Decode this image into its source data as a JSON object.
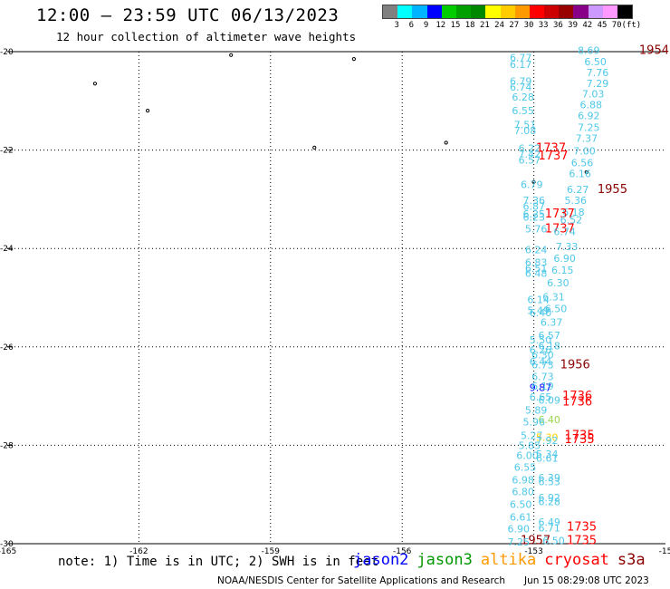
{
  "header": {
    "title": "12:00 – 23:59 UTC 06/13/2023",
    "subtitle": "12 hour collection of altimeter wave heights"
  },
  "legend": {
    "colors": [
      "#808080",
      "#00ffff",
      "#00b4ff",
      "#0000ff",
      "#00cc00",
      "#00a000",
      "#008800",
      "#ffff00",
      "#ffcc00",
      "#ff9900",
      "#ff0000",
      "#cc0000",
      "#990000",
      "#880088",
      "#cc99ff",
      "#ff99ff",
      "#000000"
    ],
    "labels": [
      "3",
      "6",
      "9",
      "12",
      "15",
      "18",
      "21",
      "24",
      "27",
      "30",
      "33",
      "36",
      "39",
      "42",
      "45",
      "70",
      "(ft)"
    ]
  },
  "axes": {
    "lat_labels": [
      "-20",
      "-22",
      "-24",
      "-26",
      "-28",
      "-30"
    ],
    "lon_labels": [
      "-165",
      "-162",
      "-159",
      "-156",
      "-153",
      "-15"
    ]
  },
  "wave_labels": [
    {
      "t": "8.69",
      "c": "#4fc8e8",
      "lon": -152.0,
      "lat": -19.97
    },
    {
      "t": "1954",
      "c": "#8b0000",
      "lon": -150.6,
      "lat": -19.97
    },
    {
      "t": "6.77",
      "c": "#4fc8e8",
      "lon": -153.55,
      "lat": -20.12
    },
    {
      "t": "6.50",
      "c": "#4fc8e8",
      "lon": -151.85,
      "lat": -20.2
    },
    {
      "t": "6.17",
      "c": "#4fc8e8",
      "lon": -153.55,
      "lat": -20.26
    },
    {
      "t": "7.76",
      "c": "#4fc8e8",
      "lon": -151.8,
      "lat": -20.42
    },
    {
      "t": "6.79",
      "c": "#4fc8e8",
      "lon": -153.55,
      "lat": -20.6
    },
    {
      "t": "7.29",
      "c": "#4fc8e8",
      "lon": -151.8,
      "lat": -20.64
    },
    {
      "t": "6.74",
      "c": "#4fc8e8",
      "lon": -153.55,
      "lat": -20.72
    },
    {
      "t": "7.03",
      "c": "#4fc8e8",
      "lon": -151.9,
      "lat": -20.86
    },
    {
      "t": "6.28",
      "c": "#4fc8e8",
      "lon": -153.5,
      "lat": -20.92
    },
    {
      "t": "6.88",
      "c": "#4fc8e8",
      "lon": -151.95,
      "lat": -21.08
    },
    {
      "t": "6.55",
      "c": "#4fc8e8",
      "lon": -153.5,
      "lat": -21.2
    },
    {
      "t": "6.92",
      "c": "#4fc8e8",
      "lon": -152.0,
      "lat": -21.3
    },
    {
      "t": "7.51",
      "c": "#4fc8e8",
      "lon": -153.45,
      "lat": -21.48
    },
    {
      "t": "7.25",
      "c": "#4fc8e8",
      "lon": -152.0,
      "lat": -21.54
    },
    {
      "t": "7.08",
      "c": "#4fc8e8",
      "lon": -153.45,
      "lat": -21.6
    },
    {
      "t": "7.37",
      "c": "#4fc8e8",
      "lon": -152.05,
      "lat": -21.76
    },
    {
      "t": "6.22",
      "c": "#4fc8e8",
      "lon": -153.35,
      "lat": -21.96
    },
    {
      "t": "1737",
      "c": "#ff0000",
      "lon": -152.95,
      "lat": -21.96
    },
    {
      "t": "7.00",
      "c": "#4fc8e8",
      "lon": -152.1,
      "lat": -22.02
    },
    {
      "t": "7.42",
      "c": "#4fc8e8",
      "lon": -153.35,
      "lat": -22.08
    },
    {
      "t": "1737",
      "c": "#ff0000",
      "lon": -152.9,
      "lat": -22.12
    },
    {
      "t": "6.57",
      "c": "#4fc8e8",
      "lon": -153.35,
      "lat": -22.2
    },
    {
      "t": "6.56",
      "c": "#4fc8e8",
      "lon": -152.15,
      "lat": -22.26
    },
    {
      "t": "6.16",
      "c": "#4fc8e8",
      "lon": -152.2,
      "lat": -22.48
    },
    {
      "t": "6.79",
      "c": "#4fc8e8",
      "lon": -153.3,
      "lat": -22.7
    },
    {
      "t": "6.27",
      "c": "#4fc8e8",
      "lon": -152.25,
      "lat": -22.8
    },
    {
      "t": "1955",
      "c": "#8b0000",
      "lon": -151.55,
      "lat": -22.8
    },
    {
      "t": "7.36",
      "c": "#4fc8e8",
      "lon": -153.25,
      "lat": -23.02
    },
    {
      "t": "5.36",
      "c": "#4fc8e8",
      "lon": -152.3,
      "lat": -23.02
    },
    {
      "t": "6.87",
      "c": "#4fc8e8",
      "lon": -153.25,
      "lat": -23.14
    },
    {
      "t": "6.18",
      "c": "#4fc8e8",
      "lon": -152.35,
      "lat": -23.26
    },
    {
      "t": "6.25",
      "c": "#4fc8e8",
      "lon": -153.25,
      "lat": -23.3
    },
    {
      "t": "1737",
      "c": "#ff0000",
      "lon": -152.75,
      "lat": -23.3
    },
    {
      "t": "6.23",
      "c": "#4fc8e8",
      "lon": -153.25,
      "lat": -23.36
    },
    {
      "t": "6.52",
      "c": "#4fc8e8",
      "lon": -152.4,
      "lat": -23.42
    },
    {
      "t": "5.76",
      "c": "#4fc8e8",
      "lon": -153.2,
      "lat": -23.6
    },
    {
      "t": "1737",
      "c": "#ff0000",
      "lon": -152.75,
      "lat": -23.6
    },
    {
      "t": "6.74",
      "c": "#4fc8e8",
      "lon": -152.55,
      "lat": -23.66
    },
    {
      "t": "7.33",
      "c": "#4fc8e8",
      "lon": -152.5,
      "lat": -23.96
    },
    {
      "t": "6.24",
      "c": "#4fc8e8",
      "lon": -153.2,
      "lat": -24.02
    },
    {
      "t": "6.90",
      "c": "#4fc8e8",
      "lon": -152.55,
      "lat": -24.2
    },
    {
      "t": "6.83",
      "c": "#4fc8e8",
      "lon": -153.2,
      "lat": -24.28
    },
    {
      "t": "6.51",
      "c": "#4fc8e8",
      "lon": -153.2,
      "lat": -24.4
    },
    {
      "t": "6.15",
      "c": "#4fc8e8",
      "lon": -152.6,
      "lat": -24.44
    },
    {
      "t": "6.48",
      "c": "#4fc8e8",
      "lon": -153.2,
      "lat": -24.5
    },
    {
      "t": "6.30",
      "c": "#4fc8e8",
      "lon": -152.7,
      "lat": -24.7
    },
    {
      "t": "6.31",
      "c": "#4fc8e8",
      "lon": -152.8,
      "lat": -24.98
    },
    {
      "t": "6.14",
      "c": "#4fc8e8",
      "lon": -153.15,
      "lat": -25.04
    },
    {
      "t": "6.50",
      "c": "#4fc8e8",
      "lon": -152.75,
      "lat": -25.22
    },
    {
      "t": "5.49",
      "c": "#4fc8e8",
      "lon": -153.15,
      "lat": -25.26
    },
    {
      "t": "6.40",
      "c": "#4fc8e8",
      "lon": -153.1,
      "lat": -25.3
    },
    {
      "t": "6.37",
      "c": "#4fc8e8",
      "lon": -152.85,
      "lat": -25.5
    },
    {
      "t": "6.57",
      "c": "#4fc8e8",
      "lon": -152.9,
      "lat": -25.76
    },
    {
      "t": "5.50",
      "c": "#4fc8e8",
      "lon": -153.1,
      "lat": -25.86
    },
    {
      "t": "6.18",
      "c": "#4fc8e8",
      "lon": -152.9,
      "lat": -25.98
    },
    {
      "t": "6.26",
      "c": "#4fc8e8",
      "lon": -153.1,
      "lat": -26.06
    },
    {
      "t": "6.30",
      "c": "#4fc8e8",
      "lon": -153.05,
      "lat": -26.16
    },
    {
      "t": "6.44",
      "c": "#4fc8e8",
      "lon": -153.1,
      "lat": -26.3
    },
    {
      "t": "6.73",
      "c": "#4fc8e8",
      "lon": -153.05,
      "lat": -26.36
    },
    {
      "t": "1956",
      "c": "#8b0000",
      "lon": -152.4,
      "lat": -26.36
    },
    {
      "t": "6.73",
      "c": "#4fc8e8",
      "lon": -153.05,
      "lat": -26.6
    },
    {
      "t": "9.87",
      "c": "#0000ff",
      "lon": -153.1,
      "lat": -26.82
    },
    {
      "t": "6.19",
      "c": "#4fc8e8",
      "lon": -153.05,
      "lat": -26.8
    },
    {
      "t": "1736",
      "c": "#ff0000",
      "lon": -152.35,
      "lat": -27.0
    },
    {
      "t": "6.65",
      "c": "#4fc8e8",
      "lon": -153.1,
      "lat": -27.02
    },
    {
      "t": "6.09",
      "c": "#4fc8e8",
      "lon": -152.9,
      "lat": -27.08
    },
    {
      "t": "1736",
      "c": "#ff0000",
      "lon": -152.35,
      "lat": -27.12
    },
    {
      "t": "5.89",
      "c": "#4fc8e8",
      "lon": -153.2,
      "lat": -27.28
    },
    {
      "t": "6.40",
      "c": "#9bd84a",
      "lon": -152.9,
      "lat": -27.48
    },
    {
      "t": "5.96",
      "c": "#4fc8e8",
      "lon": -153.25,
      "lat": -27.52
    },
    {
      "t": "5.27",
      "c": "#4fc8e8",
      "lon": -153.3,
      "lat": -27.8
    },
    {
      "t": "5.30",
      "c": "#ffd000",
      "lon": -152.95,
      "lat": -27.84
    },
    {
      "t": "1735",
      "c": "#ff0000",
      "lon": -152.3,
      "lat": -27.8
    },
    {
      "t": "7.92",
      "c": "#4fc8e8",
      "lon": -152.95,
      "lat": -27.9
    },
    {
      "t": "1735",
      "c": "#ff0000",
      "lon": -152.3,
      "lat": -27.88
    },
    {
      "t": "5.85",
      "c": "#4fc8e8",
      "lon": -153.35,
      "lat": -28.0
    },
    {
      "t": "6.00",
      "c": "#4fc8e8",
      "lon": -153.4,
      "lat": -28.2
    },
    {
      "t": "5.34",
      "c": "#4fc8e8",
      "lon": -152.95,
      "lat": -28.18
    },
    {
      "t": "6.61",
      "c": "#4fc8e8",
      "lon": -152.95,
      "lat": -28.26
    },
    {
      "t": "6.55",
      "c": "#4fc8e8",
      "lon": -153.45,
      "lat": -28.44
    },
    {
      "t": "6.98",
      "c": "#4fc8e8",
      "lon": -153.5,
      "lat": -28.7
    },
    {
      "t": "6.39",
      "c": "#4fc8e8",
      "lon": -152.9,
      "lat": -28.66
    },
    {
      "t": "6.53",
      "c": "#4fc8e8",
      "lon": -152.9,
      "lat": -28.74
    },
    {
      "t": "6.80",
      "c": "#4fc8e8",
      "lon": -153.5,
      "lat": -28.94
    },
    {
      "t": "6.92",
      "c": "#4fc8e8",
      "lon": -152.9,
      "lat": -29.06
    },
    {
      "t": "6.50",
      "c": "#4fc8e8",
      "lon": -153.55,
      "lat": -29.2
    },
    {
      "t": "6.28",
      "c": "#4fc8e8",
      "lon": -152.9,
      "lat": -29.14
    },
    {
      "t": "6.61",
      "c": "#4fc8e8",
      "lon": -153.55,
      "lat": -29.46
    },
    {
      "t": "6.49",
      "c": "#4fc8e8",
      "lon": -152.9,
      "lat": -29.56
    },
    {
      "t": "6.90",
      "c": "#4fc8e8",
      "lon": -153.6,
      "lat": -29.7
    },
    {
      "t": "6.71",
      "c": "#4fc8e8",
      "lon": -152.9,
      "lat": -29.68
    },
    {
      "t": "1735",
      "c": "#ff0000",
      "lon": -152.25,
      "lat": -29.66
    },
    {
      "t": "1957",
      "c": "#8b0000",
      "lon": -153.3,
      "lat": -29.94
    },
    {
      "t": "6.50",
      "c": "#4fc8e8",
      "lon": -152.8,
      "lat": -29.94
    },
    {
      "t": "1735",
      "c": "#ff0000",
      "lon": -152.25,
      "lat": -29.94
    },
    {
      "t": "7.25",
      "c": "#4fc8e8",
      "lon": -153.6,
      "lat": -29.96
    }
  ],
  "note": "note: 1) Time is in UTC; 2) SWH is in feet",
  "satellites": [
    {
      "name": "jason2",
      "color": "#0000ff"
    },
    {
      "name": "jason3",
      "color": "#009900"
    },
    {
      "name": "altika",
      "color": "#ff9900"
    },
    {
      "name": "cryosat",
      "color": "#ff0000"
    },
    {
      "name": "s3a",
      "color": "#8b0000"
    }
  ],
  "footer": {
    "credit": "NOAA/NESDIS Center for Satellite Applications and Research",
    "timestamp": "Jun 15 08:29:08 UTC 2023"
  }
}
